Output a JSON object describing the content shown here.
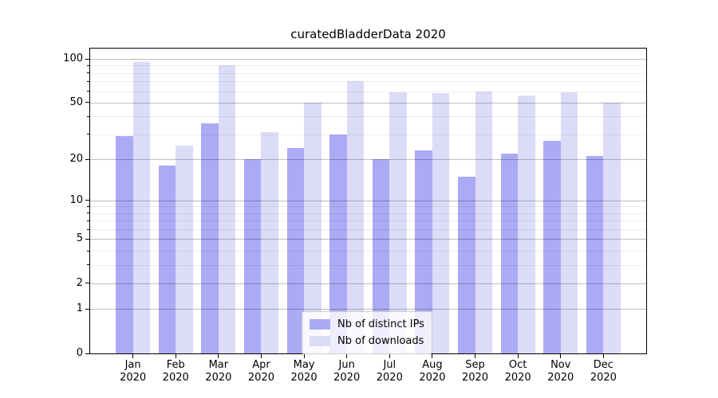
{
  "chart_data": {
    "type": "bar",
    "title": "curatedBladderData 2020",
    "year": "2020",
    "categories": [
      "Jan",
      "Feb",
      "Mar",
      "Apr",
      "May",
      "Jun",
      "Jul",
      "Aug",
      "Sep",
      "Oct",
      "Nov",
      "Dec"
    ],
    "series": [
      {
        "name": "Nb of distinct IPs",
        "color": "#aaaaf5",
        "values": [
          29,
          18,
          36,
          20,
          24,
          30,
          20,
          23,
          15,
          22,
          27,
          21
        ]
      },
      {
        "name": "Nb of downloads",
        "color": "#dcdcf8",
        "values": [
          95,
          25,
          90,
          31,
          50,
          70,
          59,
          58,
          60,
          56,
          59,
          50
        ]
      }
    ],
    "yscale": "log1p",
    "ylim": [
      0,
      118
    ],
    "yticks": [
      0,
      1,
      2,
      5,
      10,
      20,
      50,
      100
    ],
    "yticks_minor": [
      3,
      4,
      6,
      7,
      8,
      9,
      30,
      40,
      60,
      70,
      80,
      90
    ],
    "grid": true,
    "legend_position": "lower center"
  },
  "colors": {
    "major_grid": "rgba(0,0,0,0.25)",
    "minor_grid": "rgba(0,0,0,0.065)",
    "axis": "#000000",
    "text": "#000000",
    "legend_border": "#cccccc",
    "legend_bg": "rgba(255,255,255,0.8)"
  }
}
